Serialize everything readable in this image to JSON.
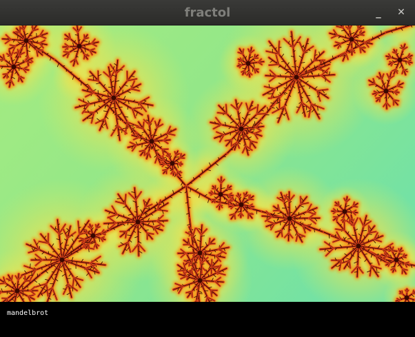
{
  "window": {
    "title": "fractol",
    "minimize_glyph": "_",
    "close_glyph": "✕"
  },
  "fractal": {
    "name_label": "mandelbrot"
  },
  "colors": {
    "titlebar": "#2f2f2d",
    "title_text": "#7f7f7b",
    "background_green": "#8fe68a",
    "background_cyan": "#76e2a2",
    "glow_yellow": "#f5e44a",
    "glow_orange": "#f59a1a",
    "filament_red": "#d03a10",
    "filament_dark": "#2a0800",
    "infobar": "#000000"
  }
}
